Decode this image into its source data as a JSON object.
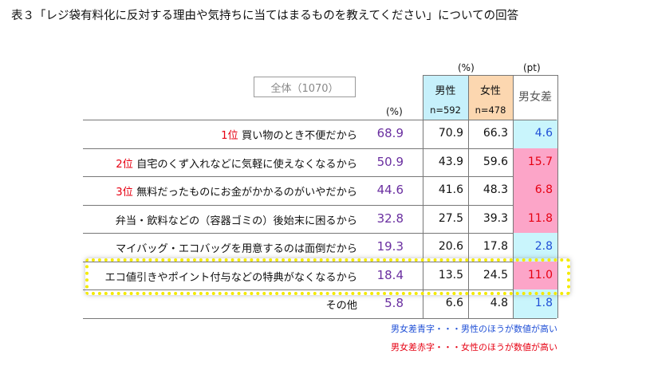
{
  "title": "表３「レジ袋有料化に反対する理由や気持ちに当てはまるものを教えてください」についての回答",
  "overall_label": "全体（1070）",
  "units": {
    "pct_total": "(%)",
    "pct_group": "(%)",
    "pt": "(pt)"
  },
  "headers": {
    "male": "男性",
    "male_n": "n=592",
    "female": "女性",
    "female_n": "n=478",
    "diff": "男女差"
  },
  "colors": {
    "male_header_bg": "#c6f0fb",
    "female_header_bg": "#fcd7b0",
    "diff_blue_bg": "#c9f5fc",
    "diff_pink_bg": "#fca5c8",
    "total_text": "#6a2fa0",
    "rank_text": "#e60012",
    "blue_text": "#1f4fd6",
    "red_text": "#e60012"
  },
  "chart_data": {
    "type": "table",
    "columns": [
      "全体",
      "男性",
      "女性",
      "男女差"
    ],
    "rows": [
      {
        "rank": "1位",
        "label": "買い物のとき不便だから",
        "total": "68.9",
        "male": "70.9",
        "female": "66.3",
        "diff": "4.6",
        "diff_color": "blue"
      },
      {
        "rank": "2位",
        "label": "自宅のくず入れなどに気軽に使えなくなるから",
        "total": "50.9",
        "male": "43.9",
        "female": "59.6",
        "diff": "15.7",
        "diff_color": "pink"
      },
      {
        "rank": "3位",
        "label": "無料だったものにお金がかかるのがいやだから",
        "total": "44.6",
        "male": "41.6",
        "female": "48.3",
        "diff": "6.8",
        "diff_color": "pink"
      },
      {
        "rank": "",
        "label": "弁当・飲料などの（容器ゴミの）後始末に困るから",
        "total": "32.8",
        "male": "27.5",
        "female": "39.3",
        "diff": "11.8",
        "diff_color": "pink"
      },
      {
        "rank": "",
        "label": "マイバッグ・エコバッグを用意するのは面倒だから",
        "total": "19.3",
        "male": "20.6",
        "female": "17.8",
        "diff": "2.8",
        "diff_color": "blue"
      },
      {
        "rank": "",
        "label": "エコ値引きやポイント付与などの特典がなくなるから",
        "total": "18.4",
        "male": "13.5",
        "female": "24.5",
        "diff": "11.0",
        "diff_color": "pink"
      },
      {
        "rank": "",
        "label": "その他",
        "total": "5.8",
        "male": "6.6",
        "female": "4.8",
        "diff": "1.8",
        "diff_color": "blue"
      }
    ]
  },
  "notes": {
    "blue": "男女差青字・・・男性のほうが数値が高い",
    "red": "男女差赤字・・・女性のほうが数値が高い"
  }
}
